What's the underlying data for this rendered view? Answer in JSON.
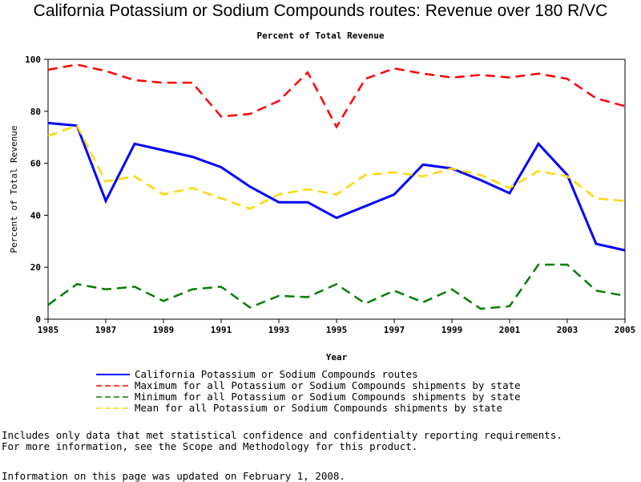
{
  "chart_data": {
    "type": "line",
    "title": "California Potassium or Sodium Compounds routes: Revenue over 180 R/VC",
    "subtitle": "Percent of Total Revenue",
    "xlabel": "Year",
    "ylabel": "Percent of Total Revenue",
    "xlim": [
      1985,
      2005
    ],
    "ylim": [
      0,
      100
    ],
    "x_ticks": [
      "1985",
      "1987",
      "1989",
      "1991",
      "1993",
      "1995",
      "1997",
      "1999",
      "2001",
      "2003",
      "2005"
    ],
    "y_ticks": [
      "0",
      "20",
      "40",
      "60",
      "80",
      "100"
    ],
    "grid": false,
    "legend_position": "bottom",
    "x": [
      1985,
      1986,
      1987,
      1988,
      1989,
      1990,
      1991,
      1992,
      1993,
      1994,
      1995,
      1996,
      1997,
      1998,
      1999,
      2000,
      2001,
      2002,
      2003,
      2004,
      2005
    ],
    "series": [
      {
        "name": "California Potassium or Sodium Compounds routes",
        "color": "#0000ff",
        "style": "solid",
        "values": [
          75.5,
          74.5,
          45.5,
          67.5,
          65,
          62.5,
          58.5,
          51,
          45,
          45,
          39,
          43.5,
          48,
          59.5,
          58,
          53.5,
          48.5,
          67.5,
          55.5,
          29,
          26.5
        ]
      },
      {
        "name": "Maximum for all Potassium or Sodium Compounds shipments by state",
        "color": "#ff0000",
        "style": "dashed",
        "values": [
          96,
          98,
          95.5,
          92,
          91,
          91,
          78,
          79,
          84,
          95,
          74,
          92.5,
          96.5,
          94.5,
          93,
          94,
          93,
          94.5,
          92.5,
          85,
          82
        ]
      },
      {
        "name": "Minimum for all Potassium or Sodium Compounds shipments by state",
        "color": "#008000",
        "style": "dashed",
        "values": [
          5.5,
          13.5,
          11.5,
          12.5,
          7,
          11.5,
          12.5,
          4.5,
          9,
          8.5,
          13.5,
          6,
          11,
          6.5,
          11.5,
          4,
          5,
          21,
          21,
          11,
          9
        ]
      },
      {
        "name": "Mean for all Potassium or Sodium Compounds shipments by state",
        "color": "#ffd700",
        "style": "dashed",
        "values": [
          70.5,
          74.5,
          53,
          55,
          48,
          50.5,
          46.5,
          42.5,
          48,
          50,
          48,
          55.5,
          56.5,
          55,
          58,
          55.5,
          50.5,
          57,
          55,
          46.5,
          45.5
        ]
      }
    ]
  },
  "footer": {
    "note_line1": "Includes only data that met statistical confidence and confidentialty reporting requirements.",
    "note_line2": "For more information, see the Scope and Methodology for this product.",
    "updated": "Information on this page was updated on February 1, 2008."
  }
}
